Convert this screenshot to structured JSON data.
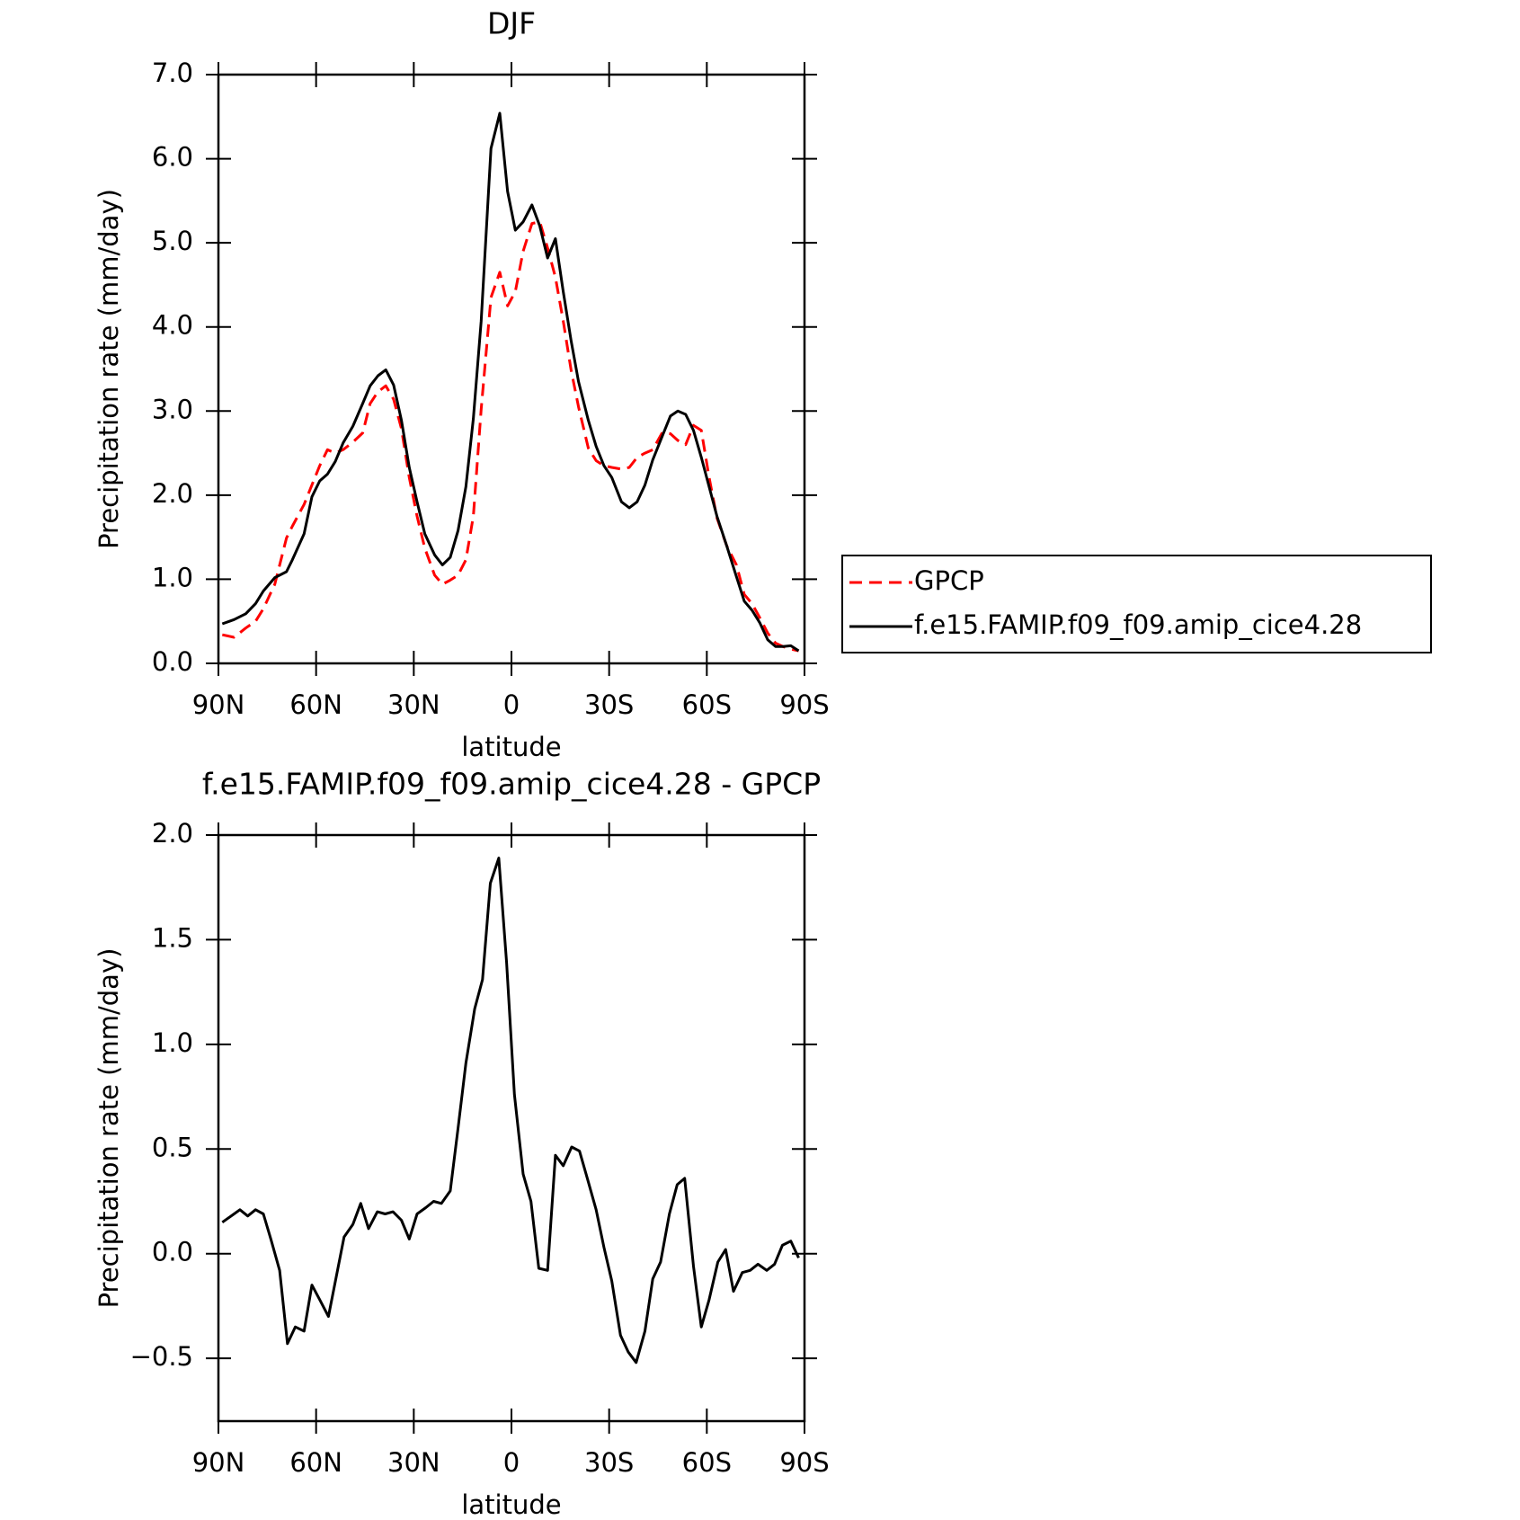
{
  "chart_data": [
    {
      "type": "line",
      "title": "DJF",
      "xlabel": "latitude",
      "ylabel": "Precipitation rate (mm/day)",
      "x": [
        88.8,
        85.2,
        81.6,
        78.6,
        76.2,
        72.7,
        69.1,
        67.3,
        63.7,
        61.3,
        58.9,
        56.5,
        54.1,
        51.7,
        48.7,
        45.7,
        43.4,
        41.0,
        38.6,
        36.2,
        33.8,
        31.4,
        29.0,
        26.6,
        23.6,
        21.2,
        18.8,
        16.4,
        14.0,
        11.7,
        9.3,
        6.3,
        3.6,
        1.2,
        -1.2,
        -3.6,
        -6.3,
        -8.7,
        -11.1,
        -13.5,
        -15.9,
        -18.3,
        -20.6,
        -23.6,
        -26.0,
        -28.4,
        -30.8,
        -33.8,
        -36.2,
        -38.6,
        -41.0,
        -43.4,
        -46.4,
        -48.8,
        -51.1,
        -53.5,
        -55.9,
        -58.3,
        -60.7,
        -63.1,
        -66.1,
        -69.1,
        -71.5,
        -73.9,
        -76.3,
        -78.7,
        -81.1,
        -83.4,
        -85.8,
        -88.2
      ],
      "series": [
        {
          "name": "GPCP",
          "color": "#ff0000",
          "line_style": "dashed",
          "values": [
            0.34,
            0.31,
            0.42,
            0.5,
            0.65,
            0.94,
            1.49,
            1.63,
            1.89,
            2.12,
            2.35,
            2.54,
            2.5,
            2.54,
            2.63,
            2.74,
            3.09,
            3.23,
            3.3,
            3.14,
            2.79,
            2.21,
            1.75,
            1.37,
            1.05,
            0.94,
            0.99,
            1.05,
            1.23,
            1.75,
            3.02,
            4.35,
            4.65,
            4.25,
            4.42,
            4.9,
            5.23,
            5.25,
            4.94,
            4.59,
            4.07,
            3.49,
            3.05,
            2.56,
            2.41,
            2.35,
            2.33,
            2.31,
            2.33,
            2.45,
            2.5,
            2.54,
            2.75,
            2.73,
            2.65,
            2.6,
            2.83,
            2.77,
            2.21,
            1.73,
            1.4,
            1.17,
            0.82,
            0.71,
            0.54,
            0.36,
            0.24,
            0.2,
            0.17,
            0.15
          ]
        },
        {
          "name": "f.e15.FAMIP.f09_f09.amip_cice4.28",
          "color": "#000000",
          "line_style": "solid",
          "values": [
            0.47,
            0.52,
            0.59,
            0.71,
            0.86,
            1.02,
            1.09,
            1.23,
            1.54,
            1.98,
            2.17,
            2.25,
            2.4,
            2.62,
            2.82,
            3.09,
            3.3,
            3.42,
            3.49,
            3.31,
            2.89,
            2.33,
            1.92,
            1.54,
            1.29,
            1.17,
            1.26,
            1.58,
            2.1,
            2.91,
            4.07,
            6.12,
            6.54,
            5.61,
            5.15,
            5.25,
            5.45,
            5.2,
            4.82,
            5.05,
            4.42,
            3.84,
            3.35,
            2.89,
            2.58,
            2.35,
            2.21,
            1.92,
            1.85,
            1.92,
            2.12,
            2.42,
            2.71,
            2.94,
            3.0,
            2.96,
            2.77,
            2.45,
            2.1,
            1.75,
            1.4,
            1.03,
            0.74,
            0.63,
            0.48,
            0.28,
            0.2,
            0.2,
            0.21,
            0.15
          ]
        }
      ],
      "xlim": [
        90,
        -90
      ],
      "xticks": [
        {
          "value": 90,
          "label": "90N"
        },
        {
          "value": 60,
          "label": "60N"
        },
        {
          "value": 30,
          "label": "30N"
        },
        0,
        {
          "value": -30,
          "label": "30S"
        },
        {
          "value": -60,
          "label": "60S"
        },
        {
          "value": -90,
          "label": "90S"
        }
      ],
      "ylim": [
        0,
        7
      ],
      "yticks": [
        {
          "value": 0,
          "label": "0.0"
        },
        {
          "value": 1,
          "label": "1.0"
        },
        {
          "value": 2,
          "label": "2.0"
        },
        {
          "value": 3,
          "label": "3.0"
        },
        {
          "value": 4,
          "label": "4.0"
        },
        {
          "value": 5,
          "label": "5.0"
        },
        {
          "value": 6,
          "label": "6.0"
        },
        {
          "value": 7,
          "label": "7.0"
        }
      ],
      "legend": "right"
    },
    {
      "type": "line",
      "title": "f.e15.FAMIP.f09_f09.amip_cice4.28 - GPCP",
      "xlabel": "latitude",
      "ylabel": "Precipitation rate (mm/day)",
      "x": [
        88.8,
        85.2,
        83.4,
        81.0,
        78.6,
        76.2,
        73.9,
        71.2,
        68.8,
        66.4,
        63.7,
        61.3,
        58.9,
        56.2,
        53.8,
        51.4,
        48.7,
        46.3,
        43.9,
        41.2,
        38.8,
        36.4,
        33.8,
        31.4,
        29.0,
        26.3,
        23.9,
        21.5,
        18.8,
        16.4,
        14.0,
        11.3,
        8.9,
        6.5,
        3.9,
        1.5,
        -0.9,
        -3.6,
        -6.0,
        -8.4,
        -11.1,
        -13.5,
        -15.9,
        -18.5,
        -20.9,
        -23.3,
        -26.0,
        -28.4,
        -30.8,
        -33.5,
        -35.9,
        -38.3,
        -41.0,
        -43.4,
        -45.8,
        -48.5,
        -50.9,
        -53.2,
        -55.9,
        -58.3,
        -60.7,
        -63.4,
        -65.8,
        -68.2,
        -70.9,
        -73.3,
        -75.7,
        -78.4,
        -80.8,
        -83.2,
        -85.8,
        -88.2
      ],
      "series": [
        {
          "color": "#000000",
          "line_style": "solid",
          "values": [
            0.15,
            0.19,
            0.21,
            0.18,
            0.21,
            0.19,
            0.07,
            -0.08,
            -0.43,
            -0.35,
            -0.37,
            -0.15,
            -0.22,
            -0.3,
            -0.11,
            0.08,
            0.14,
            0.24,
            0.12,
            0.2,
            0.19,
            0.2,
            0.16,
            0.07,
            0.19,
            0.22,
            0.25,
            0.24,
            0.3,
            0.6,
            0.91,
            1.17,
            1.31,
            1.77,
            1.89,
            1.39,
            0.76,
            0.38,
            0.25,
            -0.07,
            -0.08,
            0.47,
            0.42,
            0.51,
            0.49,
            0.36,
            0.21,
            0.03,
            -0.13,
            -0.39,
            -0.47,
            -0.52,
            -0.37,
            -0.12,
            -0.04,
            0.19,
            0.33,
            0.36,
            -0.06,
            -0.35,
            -0.22,
            -0.04,
            0.02,
            -0.18,
            -0.09,
            -0.08,
            -0.05,
            -0.08,
            -0.05,
            0.04,
            0.06,
            -0.02
          ]
        }
      ],
      "xlim": [
        90,
        -90
      ],
      "xticks": [
        {
          "value": 90,
          "label": "90N"
        },
        {
          "value": 60,
          "label": "60N"
        },
        {
          "value": 30,
          "label": "30N"
        },
        0,
        {
          "value": -30,
          "label": "30S"
        },
        {
          "value": -60,
          "label": "60S"
        },
        {
          "value": -90,
          "label": "90S"
        }
      ],
      "ylim": [
        -0.8,
        2.0
      ],
      "yticks": [
        {
          "value": -0.5,
          "label": "−0.5"
        },
        {
          "value": 0,
          "label": "0.0"
        },
        0.5,
        {
          "value": 1,
          "label": "1.0"
        },
        1.5,
        {
          "value": 2,
          "label": "2.0"
        }
      ]
    }
  ]
}
